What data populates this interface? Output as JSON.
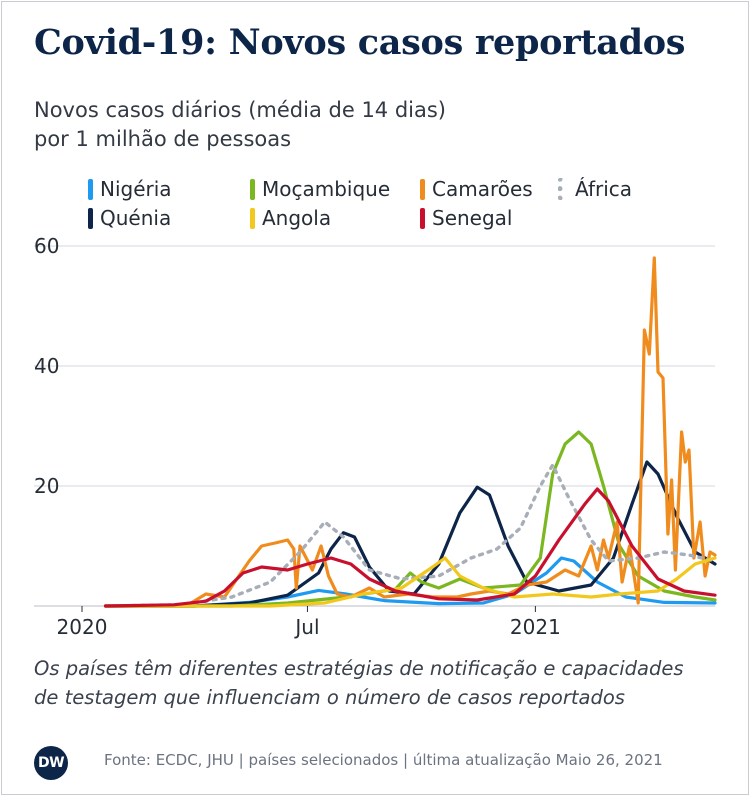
{
  "header": {
    "title": "Covid-19: Novos casos reportados",
    "subtitle_line1": "Novos casos diários (média de 14 dias)",
    "subtitle_line2": "por 1 milhão de pessoas"
  },
  "footer": {
    "note_line1": "Os países têm diferentes estratégias de notificação e capacidades",
    "note_line2": "de testagem que influenciam o número de casos reportados",
    "logo_text": "DW",
    "source": "Fonte: ECDC, JHU | países selecionados | última atualização Maio 26, 2021"
  },
  "chart_data": {
    "type": "line",
    "x_type": "date",
    "x_range": [
      "2020-01-01",
      "2021-05-26"
    ],
    "ylim": [
      0,
      60
    ],
    "yticks": [
      20,
      40,
      60
    ],
    "xticks": [
      {
        "date": "2020-01-01",
        "label": "2020"
      },
      {
        "date": "2020-07-01",
        "label": "Jul"
      },
      {
        "date": "2021-01-01",
        "label": "2021"
      }
    ],
    "grid": "horizontal",
    "legend_position": "top",
    "series": [
      {
        "name": "Nigéria",
        "color": "#1e9bf0",
        "dashed": false,
        "points": [
          [
            "2020-01-20",
            0
          ],
          [
            "2020-04-01",
            0
          ],
          [
            "2020-05-15",
            0.6
          ],
          [
            "2020-06-15",
            1.5
          ],
          [
            "2020-07-10",
            2.6
          ],
          [
            "2020-08-01",
            2.0
          ],
          [
            "2020-09-01",
            0.9
          ],
          [
            "2020-10-15",
            0.4
          ],
          [
            "2020-11-20",
            0.5
          ],
          [
            "2020-12-15",
            2.0
          ],
          [
            "2021-01-10",
            5.5
          ],
          [
            "2021-01-22",
            8.0
          ],
          [
            "2021-02-01",
            7.5
          ],
          [
            "2021-02-20",
            4.0
          ],
          [
            "2021-03-15",
            1.5
          ],
          [
            "2021-04-15",
            0.6
          ],
          [
            "2021-05-26",
            0.5
          ]
        ]
      },
      {
        "name": "Quénia",
        "color": "#0c2548",
        "dashed": false,
        "points": [
          [
            "2020-01-20",
            0
          ],
          [
            "2020-04-01",
            0
          ],
          [
            "2020-05-15",
            0.5
          ],
          [
            "2020-06-15",
            1.8
          ],
          [
            "2020-07-10",
            5.5
          ],
          [
            "2020-07-20",
            9.5
          ],
          [
            "2020-07-30",
            12.2
          ],
          [
            "2020-08-08",
            11.5
          ],
          [
            "2020-08-20",
            6.5
          ],
          [
            "2020-09-05",
            2.5
          ],
          [
            "2020-09-25",
            2.0
          ],
          [
            "2020-10-15",
            7.0
          ],
          [
            "2020-11-01",
            15.5
          ],
          [
            "2020-11-15",
            19.8
          ],
          [
            "2020-11-25",
            18.5
          ],
          [
            "2020-12-10",
            10.0
          ],
          [
            "2020-12-25",
            4.0
          ],
          [
            "2021-01-20",
            2.5
          ],
          [
            "2021-02-15",
            3.5
          ],
          [
            "2021-03-05",
            8.0
          ],
          [
            "2021-03-20",
            17.0
          ],
          [
            "2021-04-01",
            24.0
          ],
          [
            "2021-04-10",
            22.0
          ],
          [
            "2021-04-25",
            15.0
          ],
          [
            "2021-05-10",
            9.0
          ],
          [
            "2021-05-26",
            7.0
          ]
        ]
      },
      {
        "name": "Moçambique",
        "color": "#7bb720",
        "dashed": false,
        "points": [
          [
            "2020-01-20",
            0
          ],
          [
            "2020-05-01",
            0
          ],
          [
            "2020-06-15",
            0.5
          ],
          [
            "2020-08-01",
            1.5
          ],
          [
            "2020-09-10",
            2.8
          ],
          [
            "2020-09-22",
            5.5
          ],
          [
            "2020-10-01",
            4.0
          ],
          [
            "2020-10-15",
            3.0
          ],
          [
            "2020-11-01",
            4.5
          ],
          [
            "2020-11-20",
            3.0
          ],
          [
            "2020-12-20",
            3.5
          ],
          [
            "2021-01-05",
            8.0
          ],
          [
            "2021-01-15",
            22.0
          ],
          [
            "2021-01-25",
            27.0
          ],
          [
            "2021-02-05",
            29.0
          ],
          [
            "2021-02-15",
            27.0
          ],
          [
            "2021-02-25",
            20.0
          ],
          [
            "2021-03-10",
            10.0
          ],
          [
            "2021-03-25",
            5.0
          ],
          [
            "2021-04-15",
            2.5
          ],
          [
            "2021-05-10",
            1.5
          ],
          [
            "2021-05-26",
            1.0
          ]
        ]
      },
      {
        "name": "Camarões",
        "color": "#f08c1e",
        "dashed": false,
        "points": [
          [
            "2020-01-20",
            0
          ],
          [
            "2020-03-25",
            0
          ],
          [
            "2020-04-10",
            2.0
          ],
          [
            "2020-04-25",
            1.5
          ],
          [
            "2020-05-05",
            4.5
          ],
          [
            "2020-05-15",
            7.5
          ],
          [
            "2020-05-25",
            10.0
          ],
          [
            "2020-06-05",
            10.5
          ],
          [
            "2020-06-15",
            11.0
          ],
          [
            "2020-06-20",
            9.5
          ],
          [
            "2020-06-22",
            3.0
          ],
          [
            "2020-06-25",
            10.0
          ],
          [
            "2020-07-05",
            6.0
          ],
          [
            "2020-07-12",
            10.0
          ],
          [
            "2020-07-18",
            5.0
          ],
          [
            "2020-07-25",
            2.0
          ],
          [
            "2020-08-05",
            1.5
          ],
          [
            "2020-08-20",
            3.0
          ],
          [
            "2020-09-01",
            1.5
          ],
          [
            "2020-09-20",
            2.0
          ],
          [
            "2020-10-10",
            1.5
          ],
          [
            "2020-10-30",
            1.5
          ],
          [
            "2020-11-10",
            2.0
          ],
          [
            "2020-11-25",
            2.5
          ],
          [
            "2020-12-10",
            2.0
          ],
          [
            "2020-12-25",
            3.5
          ],
          [
            "2021-01-10",
            4.0
          ],
          [
            "2021-01-25",
            6.0
          ],
          [
            "2021-02-05",
            5.0
          ],
          [
            "2021-02-15",
            10.0
          ],
          [
            "2021-02-20",
            6.0
          ],
          [
            "2021-02-25",
            11.0
          ],
          [
            "2021-03-01",
            8.0
          ],
          [
            "2021-03-08",
            14.0
          ],
          [
            "2021-03-12",
            4.0
          ],
          [
            "2021-03-18",
            10.0
          ],
          [
            "2021-03-25",
            0.5
          ],
          [
            "2021-03-30",
            46.0
          ],
          [
            "2021-04-03",
            42.0
          ],
          [
            "2021-04-07",
            58.0
          ],
          [
            "2021-04-10",
            39.0
          ],
          [
            "2021-04-14",
            38.0
          ],
          [
            "2021-04-18",
            12.0
          ],
          [
            "2021-04-21",
            21.0
          ],
          [
            "2021-04-24",
            6.0
          ],
          [
            "2021-04-29",
            29.0
          ],
          [
            "2021-05-02",
            24.0
          ],
          [
            "2021-05-05",
            26.0
          ],
          [
            "2021-05-09",
            8.0
          ],
          [
            "2021-05-14",
            14.0
          ],
          [
            "2021-05-18",
            5.0
          ],
          [
            "2021-05-22",
            9.0
          ],
          [
            "2021-05-26",
            8.5
          ]
        ]
      },
      {
        "name": "África",
        "color": "#a7aeb8",
        "dashed": true,
        "points": [
          [
            "2020-01-20",
            0
          ],
          [
            "2020-03-20",
            0.2
          ],
          [
            "2020-05-01",
            1.5
          ],
          [
            "2020-06-01",
            4.0
          ],
          [
            "2020-06-25",
            9.0
          ],
          [
            "2020-07-15",
            14.0
          ],
          [
            "2020-07-30",
            11.5
          ],
          [
            "2020-08-20",
            6.0
          ],
          [
            "2020-09-15",
            4.5
          ],
          [
            "2020-10-15",
            5.0
          ],
          [
            "2020-11-10",
            8.0
          ],
          [
            "2020-12-01",
            9.5
          ],
          [
            "2020-12-20",
            13.0
          ],
          [
            "2021-01-05",
            20.0
          ],
          [
            "2021-01-15",
            23.5
          ],
          [
            "2021-01-28",
            18.0
          ],
          [
            "2021-02-15",
            11.0
          ],
          [
            "2021-03-01",
            7.5
          ],
          [
            "2021-03-25",
            8.0
          ],
          [
            "2021-04-15",
            9.0
          ],
          [
            "2021-05-05",
            8.5
          ],
          [
            "2021-05-26",
            7.5
          ]
        ]
      },
      {
        "name": "Angola",
        "color": "#f2c81c",
        "dashed": false,
        "points": [
          [
            "2020-01-20",
            0
          ],
          [
            "2020-06-01",
            0
          ],
          [
            "2020-07-15",
            0.5
          ],
          [
            "2020-08-15",
            2.0
          ],
          [
            "2020-09-15",
            3.0
          ],
          [
            "2020-10-10",
            6.5
          ],
          [
            "2020-10-20",
            8.0
          ],
          [
            "2020-11-01",
            5.0
          ],
          [
            "2020-11-20",
            3.0
          ],
          [
            "2020-12-15",
            1.5
          ],
          [
            "2021-01-15",
            2.0
          ],
          [
            "2021-02-15",
            1.5
          ],
          [
            "2021-03-10",
            2.0
          ],
          [
            "2021-04-10",
            2.5
          ],
          [
            "2021-04-25",
            4.5
          ],
          [
            "2021-05-10",
            7.0
          ],
          [
            "2021-05-26",
            8.0
          ]
        ]
      },
      {
        "name": "Senegal",
        "color": "#c8102e",
        "dashed": false,
        "points": [
          [
            "2020-01-20",
            0
          ],
          [
            "2020-03-15",
            0.2
          ],
          [
            "2020-04-10",
            0.8
          ],
          [
            "2020-04-25",
            2.5
          ],
          [
            "2020-05-10",
            5.5
          ],
          [
            "2020-05-25",
            6.5
          ],
          [
            "2020-06-15",
            6.0
          ],
          [
            "2020-07-01",
            7.0
          ],
          [
            "2020-07-20",
            8.0
          ],
          [
            "2020-08-05",
            7.0
          ],
          [
            "2020-08-20",
            4.5
          ],
          [
            "2020-09-10",
            2.5
          ],
          [
            "2020-10-15",
            1.2
          ],
          [
            "2020-11-15",
            1.0
          ],
          [
            "2020-12-15",
            2.0
          ],
          [
            "2021-01-01",
            5.0
          ],
          [
            "2021-01-20",
            11.0
          ],
          [
            "2021-02-10",
            17.0
          ],
          [
            "2021-02-20",
            19.5
          ],
          [
            "2021-03-01",
            17.5
          ],
          [
            "2021-03-20",
            10.0
          ],
          [
            "2021-04-10",
            4.5
          ],
          [
            "2021-05-01",
            2.5
          ],
          [
            "2021-05-26",
            1.8
          ]
        ]
      }
    ]
  }
}
